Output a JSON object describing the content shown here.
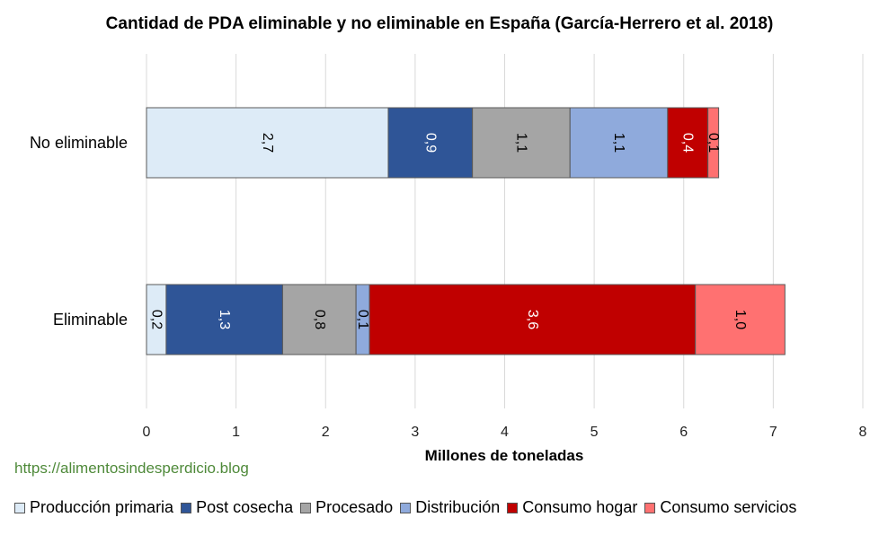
{
  "chart_data": {
    "type": "bar",
    "orientation": "horizontal",
    "stacked": true,
    "title": "Cantidad de PDA eliminable y no eliminable en España (García-Herrero et al. 2018)",
    "xlabel": "Millones de toneladas",
    "ylabel": "",
    "xlim": [
      0,
      8
    ],
    "xticks": [
      "0",
      "1",
      "2",
      "3",
      "4",
      "5",
      "6",
      "7",
      "8"
    ],
    "grid": true,
    "legend_position": "bottom",
    "categories": [
      "No eliminable",
      "Eliminable"
    ],
    "series": [
      {
        "name": "Producción primaria",
        "color": "#DDEBF7",
        "values": [
          2.7,
          0.22
        ],
        "labels": [
          "2,7",
          "0,2"
        ]
      },
      {
        "name": "Post cosecha",
        "color": "#2F5597",
        "values": [
          0.94,
          1.3
        ],
        "labels": [
          "0,9",
          "1,3"
        ]
      },
      {
        "name": "Procesado",
        "color": "#A5A5A5",
        "values": [
          1.09,
          0.82
        ],
        "labels": [
          "1,1",
          "0,8"
        ]
      },
      {
        "name": "Distribución",
        "color": "#8FAADC",
        "values": [
          1.09,
          0.15
        ],
        "labels": [
          "1,1",
          "0,1"
        ]
      },
      {
        "name": "Consumo hogar",
        "color": "#C00000",
        "values": [
          0.45,
          3.64
        ],
        "labels": [
          "0,4",
          "3,6"
        ]
      },
      {
        "name": "Consumo servicios",
        "color": "#FF7171",
        "values": [
          0.12,
          1.0
        ],
        "labels": [
          "0,1",
          "1,0"
        ]
      }
    ],
    "label_colors": [
      "#000000",
      "#ffffff",
      "#000000",
      "#000000",
      "#ffffff",
      "#000000"
    ]
  },
  "watermark": "https://alimentosindesperdicio.blog"
}
